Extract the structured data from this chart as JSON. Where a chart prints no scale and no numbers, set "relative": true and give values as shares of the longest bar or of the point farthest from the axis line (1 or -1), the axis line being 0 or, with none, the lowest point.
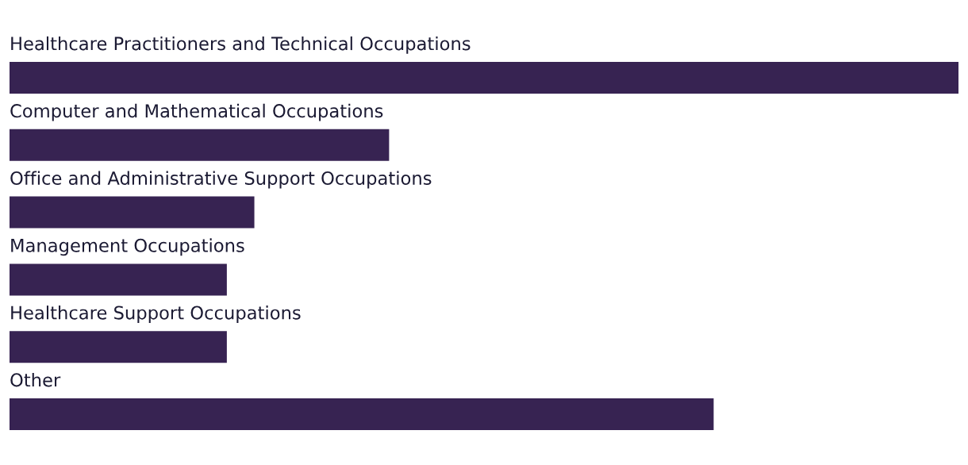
{
  "chart_data": {
    "type": "bar",
    "orientation": "horizontal",
    "relative": true,
    "categories": [
      "Healthcare Practitioners and Technical Occupations",
      "Computer and Mathematical Occupations",
      "Office and Administrative Support Occupations",
      "Management Occupations",
      "Healthcare Support Occupations",
      "Other"
    ],
    "values": [
      1,
      0.4,
      0.258,
      0.229,
      0.229,
      0.742
    ],
    "color": "#372352"
  }
}
